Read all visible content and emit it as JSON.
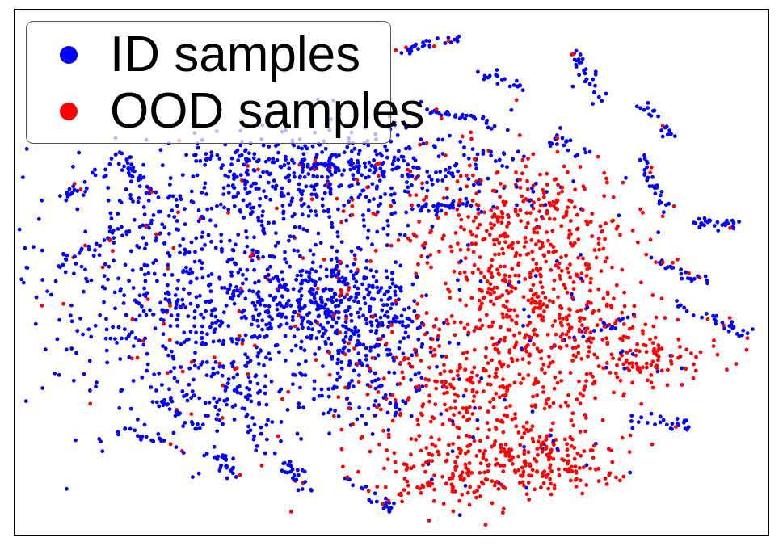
{
  "chart_data": {
    "type": "scatter",
    "title": "",
    "xlabel": "",
    "ylabel": "",
    "axes_visible": false,
    "grid": false,
    "legend_position": "top-left",
    "series": [
      {
        "name": "ID samples",
        "color": "#0000ff",
        "marker": "circle"
      },
      {
        "name": "OOD samples",
        "color": "#ff0000",
        "marker": "circle"
      }
    ]
  }
}
